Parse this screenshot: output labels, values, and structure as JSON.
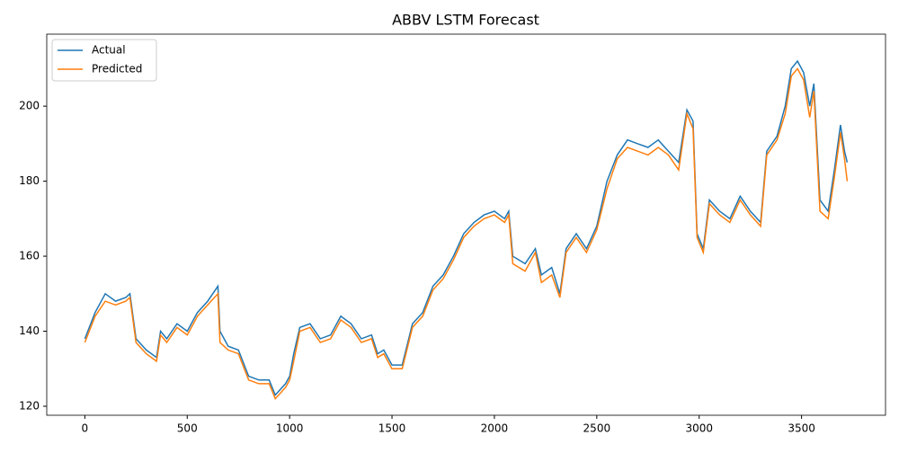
{
  "chart_data": {
    "type": "line",
    "title": "ABBV LSTM Forecast",
    "x": [
      0,
      50,
      100,
      150,
      200,
      220,
      250,
      300,
      350,
      370,
      400,
      450,
      500,
      550,
      600,
      650,
      660,
      700,
      750,
      800,
      850,
      900,
      930,
      980,
      1000,
      1020,
      1050,
      1100,
      1150,
      1200,
      1250,
      1300,
      1350,
      1400,
      1430,
      1460,
      1500,
      1550,
      1600,
      1650,
      1700,
      1750,
      1800,
      1850,
      1900,
      1950,
      2000,
      2050,
      2070,
      2090,
      2150,
      2200,
      2230,
      2280,
      2320,
      2350,
      2400,
      2450,
      2500,
      2550,
      2600,
      2650,
      2700,
      2750,
      2800,
      2850,
      2900,
      2940,
      2970,
      2990,
      3020,
      3050,
      3100,
      3150,
      3200,
      3250,
      3300,
      3330,
      3380,
      3420,
      3450,
      3480,
      3510,
      3540,
      3560,
      3590,
      3630,
      3660,
      3690,
      3710,
      3723
    ],
    "series": [
      {
        "name": "Actual",
        "color": "#1f77b4",
        "values": [
          138,
          145,
          150,
          148,
          149,
          150,
          138,
          135,
          133,
          140,
          138,
          142,
          140,
          145,
          148,
          152,
          140,
          136,
          135,
          128,
          127,
          127,
          123,
          126,
          128,
          134,
          141,
          142,
          138,
          139,
          144,
          142,
          138,
          139,
          134,
          135,
          131,
          131,
          142,
          145,
          152,
          155,
          160,
          166,
          169,
          171,
          172,
          170,
          172,
          160,
          158,
          162,
          155,
          157,
          150,
          162,
          166,
          162,
          168,
          180,
          187,
          191,
          190,
          189,
          191,
          188,
          185,
          199,
          196,
          166,
          162,
          175,
          172,
          170,
          176,
          172,
          169,
          188,
          192,
          200,
          210,
          212,
          209,
          200,
          206,
          175,
          172,
          183,
          195,
          188,
          185
        ]
      },
      {
        "name": "Predicted",
        "color": "#ff7f0e",
        "values": [
          137,
          144,
          148,
          147,
          148,
          149,
          137,
          134,
          132,
          139,
          137,
          141,
          139,
          144,
          147,
          150,
          137,
          135,
          134,
          127,
          126,
          126,
          122,
          125,
          127,
          132,
          140,
          141,
          137,
          138,
          143,
          141,
          137,
          138,
          133,
          134,
          130,
          130,
          141,
          144,
          151,
          154,
          159,
          165,
          168,
          170,
          171,
          169,
          171,
          158,
          156,
          161,
          153,
          155,
          149,
          161,
          165,
          161,
          167,
          178,
          186,
          189,
          188,
          187,
          189,
          187,
          183,
          198,
          194,
          165,
          161,
          174,
          171,
          169,
          175,
          171,
          168,
          187,
          191,
          198,
          208,
          210,
          207,
          197,
          204,
          172,
          170,
          181,
          193,
          186,
          180
        ]
      }
    ],
    "xlim": [
      -186,
      3910
    ],
    "ylim": [
      117.6,
      219.2
    ],
    "xticks": [
      0,
      500,
      1000,
      1500,
      2000,
      2500,
      3000,
      3500
    ],
    "yticks": [
      120,
      140,
      160,
      180,
      200
    ],
    "legend": "upper left"
  }
}
